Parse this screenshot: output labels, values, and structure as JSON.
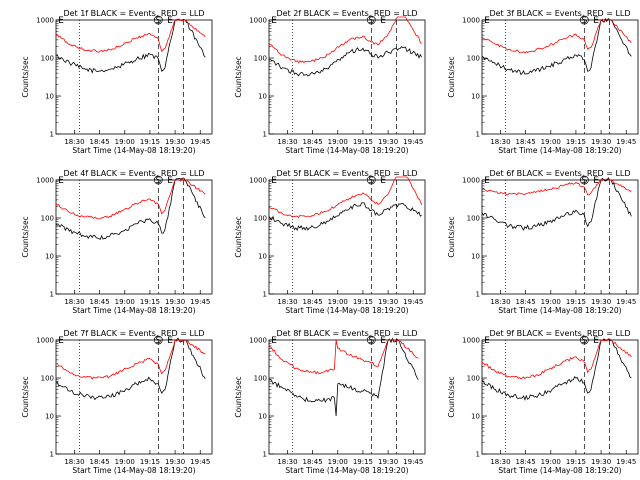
{
  "figure": {
    "shared": {
      "ylabel": "Counts/sec",
      "xlabel": "Start Time (14-May-08 18:19:20)",
      "yticks": [
        "1",
        "10",
        "100",
        "1000"
      ],
      "markers": {
        "S": "S",
        "E": "E"
      },
      "series_colors": {
        "events": "#000000",
        "lld": "#ff0000"
      }
    }
  },
  "chart_data": [
    {
      "type": "line",
      "title": "Det 1f BLACK = Events, RED = LLD",
      "xticks": [
        "18:30",
        "18:45",
        "19:00",
        "19:15",
        "19:30",
        "19:45"
      ],
      "ylim": [
        1,
        1000
      ],
      "yscale": "log",
      "series": [
        {
          "x": [
            "18:19",
            "18:27",
            "18:35",
            "18:43",
            "18:51",
            "18:59",
            "19:07",
            "19:15",
            "19:20",
            "19:22",
            "19:24",
            "19:30",
            "19:36",
            "19:48"
          ],
          "values": [
            115,
            75,
            52,
            45,
            50,
            65,
            95,
            125,
            95,
            45,
            55,
            1000,
            1000,
            105
          ]
        },
        {
          "x": [
            "18:19",
            "18:27",
            "18:35",
            "18:43",
            "18:51",
            "18:59",
            "19:07",
            "19:15",
            "19:20",
            "19:22",
            "19:24",
            "19:30",
            "19:36",
            "19:48"
          ],
          "values": [
            420,
            230,
            170,
            150,
            165,
            220,
            340,
            440,
            320,
            150,
            180,
            1000,
            1000,
            360
          ]
        }
      ]
    },
    {
      "type": "line",
      "title": "Det 2f BLACK = Events, RED = LLD",
      "xticks": [
        "18:30",
        "18:45",
        "19:00",
        "19:15",
        "19:30",
        "19:45"
      ],
      "ylim": [
        1,
        1000
      ],
      "yscale": "log",
      "series": [
        {
          "x": [
            "18:19",
            "18:27",
            "18:35",
            "18:43",
            "18:51",
            "18:59",
            "19:07",
            "19:15",
            "19:20",
            "19:24",
            "19:30",
            "19:38",
            "19:50"
          ],
          "values": [
            90,
            55,
            40,
            35,
            45,
            80,
            140,
            180,
            130,
            100,
            140,
            200,
            105
          ]
        },
        {
          "x": [
            "18:19",
            "18:27",
            "18:35",
            "18:43",
            "18:51",
            "18:59",
            "19:07",
            "19:15",
            "19:20",
            "19:24",
            "19:30",
            "19:38",
            "19:50"
          ],
          "values": [
            240,
            120,
            80,
            80,
            100,
            180,
            300,
            380,
            260,
            220,
            420,
            1800,
            240
          ]
        }
      ]
    },
    {
      "type": "line",
      "title": "Det 3f BLACK = Events, RED = LLD",
      "xticks": [
        "18:30",
        "18:45",
        "19:00",
        "19:15",
        "19:30",
        "19:45"
      ],
      "ylim": [
        1,
        1000
      ],
      "yscale": "log",
      "series": [
        {
          "x": [
            "18:19",
            "18:27",
            "18:35",
            "18:43",
            "18:51",
            "18:59",
            "19:07",
            "19:15",
            "19:20",
            "19:22",
            "19:24",
            "19:30",
            "19:36",
            "19:48"
          ],
          "values": [
            110,
            70,
            50,
            40,
            45,
            60,
            85,
            120,
            90,
            45,
            55,
            1000,
            1000,
            110
          ]
        },
        {
          "x": [
            "18:19",
            "18:27",
            "18:35",
            "18:43",
            "18:51",
            "18:59",
            "19:07",
            "19:15",
            "19:20",
            "19:22",
            "19:24",
            "19:30",
            "19:36",
            "19:48"
          ],
          "values": [
            350,
            230,
            170,
            140,
            160,
            210,
            310,
            420,
            300,
            170,
            190,
            1000,
            1000,
            250
          ]
        }
      ]
    },
    {
      "type": "line",
      "title": "Det 4f BLACK = Events, RED = LLD",
      "xticks": [
        "18:30",
        "18:45",
        "19:00",
        "19:15",
        "19:30",
        "19:45"
      ],
      "ylim": [
        1,
        1000
      ],
      "yscale": "log",
      "series": [
        {
          "x": [
            "18:19",
            "18:27",
            "18:35",
            "18:43",
            "18:51",
            "18:59",
            "19:07",
            "19:15",
            "19:20",
            "19:22",
            "19:24",
            "19:30",
            "19:36",
            "19:48"
          ],
          "values": [
            70,
            45,
            35,
            30,
            33,
            45,
            70,
            95,
            70,
            40,
            50,
            1000,
            1000,
            100
          ]
        },
        {
          "x": [
            "18:19",
            "18:27",
            "18:35",
            "18:43",
            "18:51",
            "18:59",
            "19:07",
            "19:15",
            "19:20",
            "19:22",
            "19:24",
            "19:30",
            "19:36",
            "19:48"
          ],
          "values": [
            240,
            140,
            110,
            100,
            110,
            160,
            240,
            320,
            230,
            130,
            160,
            1000,
            1000,
            420
          ]
        }
      ]
    },
    {
      "type": "line",
      "title": "Det 5f BLACK = Events, RED = LLD",
      "xticks": [
        "18:30",
        "18:45",
        "19:00",
        "19:15",
        "19:30",
        "19:45"
      ],
      "ylim": [
        1,
        1000
      ],
      "yscale": "log",
      "series": [
        {
          "x": [
            "18:19",
            "18:27",
            "18:35",
            "18:43",
            "18:51",
            "18:59",
            "19:07",
            "19:15",
            "19:20",
            "19:24",
            "19:30",
            "19:38",
            "19:50"
          ],
          "values": [
            110,
            70,
            55,
            55,
            70,
            110,
            175,
            250,
            160,
            120,
            180,
            240,
            120
          ]
        },
        {
          "x": [
            "18:19",
            "18:27",
            "18:35",
            "18:43",
            "18:51",
            "18:59",
            "19:07",
            "19:15",
            "19:20",
            "19:24",
            "19:30",
            "19:38",
            "19:50"
          ],
          "values": [
            200,
            130,
            110,
            110,
            140,
            210,
            330,
            460,
            300,
            230,
            420,
            2500,
            220
          ]
        }
      ]
    },
    {
      "type": "line",
      "title": "Det 6f BLACK = Events, RED = LLD",
      "xticks": [
        "18:30",
        "18:45",
        "19:00",
        "19:15",
        "19:30",
        "19:45"
      ],
      "ylim": [
        1,
        1000
      ],
      "yscale": "log",
      "series": [
        {
          "x": [
            "18:19",
            "18:27",
            "18:35",
            "18:43",
            "18:51",
            "18:59",
            "19:07",
            "19:15",
            "19:20",
            "19:22",
            "19:24",
            "19:30",
            "19:36",
            "19:48"
          ],
          "values": [
            140,
            90,
            60,
            55,
            60,
            80,
            110,
            160,
            120,
            60,
            80,
            1000,
            1000,
            110
          ]
        },
        {
          "x": [
            "18:19",
            "18:27",
            "18:35",
            "18:43",
            "18:51",
            "18:59",
            "19:07",
            "19:15",
            "19:20",
            "19:22",
            "19:24",
            "19:30",
            "19:36",
            "19:48"
          ],
          "values": [
            550,
            480,
            430,
            430,
            470,
            560,
            700,
            860,
            650,
            400,
            460,
            1000,
            1000,
            480
          ]
        }
      ]
    },
    {
      "type": "line",
      "title": "Det 7f BLACK = Events, RED = LLD",
      "xticks": [
        "18:30",
        "18:45",
        "19:00",
        "19:15",
        "19:30",
        "19:45"
      ],
      "ylim": [
        1,
        1000
      ],
      "yscale": "log",
      "series": [
        {
          "x": [
            "18:19",
            "18:27",
            "18:35",
            "18:43",
            "18:51",
            "18:59",
            "19:07",
            "19:15",
            "19:20",
            "19:22",
            "19:24",
            "19:30",
            "19:36",
            "19:48"
          ],
          "values": [
            75,
            45,
            35,
            30,
            32,
            45,
            70,
            95,
            70,
            40,
            50,
            1000,
            1000,
            95
          ]
        },
        {
          "x": [
            "18:19",
            "18:27",
            "18:35",
            "18:43",
            "18:51",
            "18:59",
            "19:07",
            "19:15",
            "19:20",
            "19:22",
            "19:24",
            "19:30",
            "19:36",
            "19:48"
          ],
          "values": [
            240,
            140,
            105,
            100,
            110,
            160,
            240,
            320,
            230,
            130,
            160,
            1000,
            1000,
            430
          ]
        }
      ]
    },
    {
      "type": "line",
      "title": "Det 8f BLACK = Events, RED = LLD",
      "xticks": [
        "18:30",
        "18:45",
        "19:00",
        "19:15",
        "19:30",
        "19:45"
      ],
      "ylim": [
        1,
        1000
      ],
      "yscale": "log",
      "series": [
        {
          "x": [
            "18:19",
            "18:27",
            "18:35",
            "18:43",
            "18:51",
            "18:58",
            "18:59",
            "19:00",
            "19:07",
            "19:15",
            "19:20",
            "19:24",
            "19:30",
            "19:36",
            "19:48"
          ],
          "values": [
            90,
            55,
            35,
            25,
            25,
            30,
            10,
            70,
            55,
            45,
            40,
            30,
            1000,
            1000,
            90
          ]
        },
        {
          "x": [
            "18:19",
            "18:27",
            "18:35",
            "18:43",
            "18:51",
            "18:58",
            "18:59",
            "19:00",
            "19:07",
            "19:15",
            "19:20",
            "19:24",
            "19:30",
            "19:36",
            "19:48"
          ],
          "values": [
            700,
            300,
            180,
            140,
            140,
            170,
            1000,
            600,
            400,
            300,
            250,
            200,
            1000,
            1000,
            330
          ]
        }
      ]
    },
    {
      "type": "line",
      "title": "Det 9f BLACK = Events, RED = LLD",
      "xticks": [
        "18:30",
        "18:45",
        "19:00",
        "19:15",
        "19:30",
        "19:45"
      ],
      "ylim": [
        1,
        1000
      ],
      "yscale": "log",
      "series": [
        {
          "x": [
            "18:19",
            "18:27",
            "18:35",
            "18:43",
            "18:51",
            "18:59",
            "19:07",
            "19:15",
            "19:20",
            "19:22",
            "19:24",
            "19:30",
            "19:36",
            "19:48"
          ],
          "values": [
            85,
            50,
            35,
            30,
            33,
            45,
            70,
            100,
            75,
            40,
            50,
            1000,
            1000,
            100
          ]
        },
        {
          "x": [
            "18:19",
            "18:27",
            "18:35",
            "18:43",
            "18:51",
            "18:59",
            "19:07",
            "19:15",
            "19:20",
            "19:22",
            "19:24",
            "19:30",
            "19:36",
            "19:48"
          ],
          "values": [
            260,
            150,
            110,
            100,
            115,
            170,
            260,
            360,
            260,
            140,
            170,
            1000,
            1000,
            360
          ]
        }
      ]
    }
  ]
}
